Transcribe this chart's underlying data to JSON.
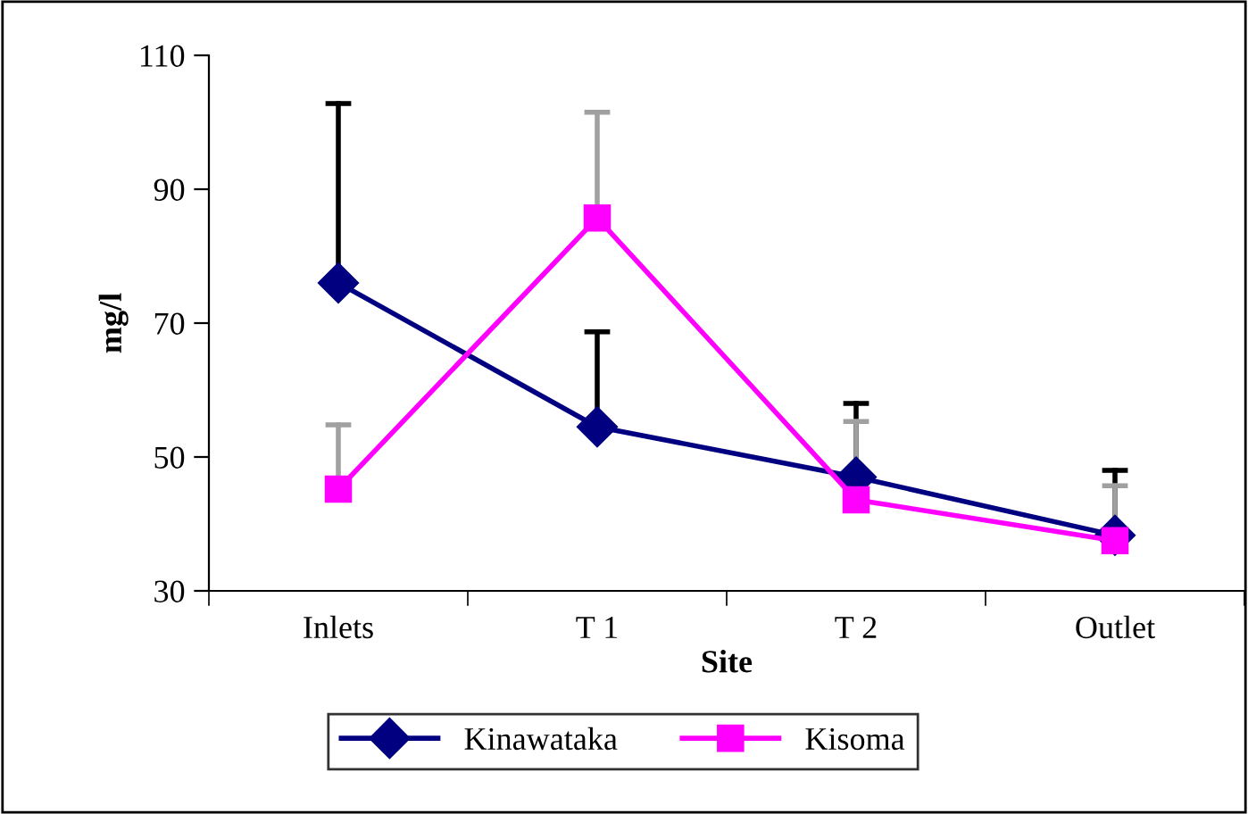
{
  "chart_data": {
    "type": "line",
    "xlabel": "Site",
    "ylabel": "mg/l",
    "categories": [
      "Inlets",
      "T 1",
      "T 2",
      "Outlet"
    ],
    "ylim": [
      30,
      110
    ],
    "yticks": [
      30,
      50,
      70,
      90,
      110
    ],
    "grid": false,
    "legend": "bottom",
    "series": [
      {
        "name": "Kinawataka",
        "color": "#000080",
        "marker": "diamond",
        "values": [
          76,
          54.5,
          47,
          38.3
        ],
        "errors": [
          [
            76,
            102.8
          ],
          [
            54.5,
            68.7
          ],
          [
            47,
            58
          ],
          [
            38.3,
            48
          ]
        ]
      },
      {
        "name": "Kisoma",
        "color": "#ff00ff",
        "marker": "square",
        "values": [
          45.2,
          85.7,
          43.6,
          37.5
        ],
        "errors": [
          [
            45.2,
            54.8
          ],
          [
            85.7,
            101.5
          ],
          [
            43.6,
            55.3
          ],
          [
            37.5,
            45.7
          ]
        ]
      }
    ]
  }
}
